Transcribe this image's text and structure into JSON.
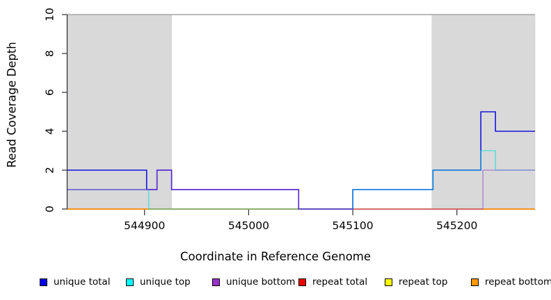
{
  "figure": {
    "xlabel": "Coordinate in Reference Genome",
    "ylabel": "Read Coverage Depth"
  },
  "legend": {
    "items": [
      {
        "label": "unique total",
        "color": "#0000ee"
      },
      {
        "label": "unique top",
        "color": "#00ffff"
      },
      {
        "label": "unique bottom",
        "color": "#9933cc"
      },
      {
        "label": "repeat total",
        "color": "#ee0000"
      },
      {
        "label": "repeat top",
        "color": "#ffff00"
      },
      {
        "label": "repeat bottom",
        "color": "#ff9900"
      }
    ],
    "item_offsets": [
      57,
      181,
      305,
      429,
      553,
      677
    ]
  },
  "chart_data": {
    "type": "line",
    "subtype": "step-coverage-plot",
    "title": "",
    "xlabel": "Coordinate in Reference Genome",
    "ylabel": "Read Coverage Depth",
    "xlim": [
      544826,
      545275
    ],
    "ylim": [
      0,
      10
    ],
    "xticks": [
      544900,
      545000,
      545100,
      545200
    ],
    "yticks": [
      0,
      2,
      4,
      6,
      8,
      10
    ],
    "grid": "single horizontal gray line at depth 10 (max-depth cap)",
    "legend_position": "bottom",
    "background_color": "#ffffff",
    "shaded_region_color": "#d9d9d9",
    "gridline_color": "#a3a3a3",
    "shaded_regions": [
      {
        "x0": 544826,
        "x1": 544926
      },
      {
        "x0": 545176,
        "x1": 545275
      }
    ],
    "series": [
      {
        "name": "repeat top",
        "legend_color": "#ffff00",
        "draw_order": 1,
        "line_color": "#ffff00",
        "opacity": 1,
        "segments": [
          [
            [
              544826,
              0
            ],
            [
              545275,
              0
            ]
          ]
        ]
      },
      {
        "name": "repeat total",
        "legend_color": "#ee0000",
        "draw_order": 2,
        "line_color": "#d84a6e",
        "opacity": 1,
        "segments": [
          [
            [
              544826,
              0
            ],
            [
              545275,
              0
            ]
          ]
        ]
      },
      {
        "name": "repeat bottom",
        "legend_color": "#ff9900",
        "draw_order": 3,
        "line_color": "#ff9500",
        "opacity": 1,
        "segments": [
          [
            [
              544826,
              0
            ],
            [
              545100,
              0
            ]
          ],
          [
            [
              545225,
              0
            ],
            [
              545275,
              0
            ]
          ]
        ]
      },
      {
        "name": "unique total",
        "legend_color": "#0000ee",
        "draw_order": 4,
        "line_color": "#1414dd",
        "opacity": 1,
        "segments": [
          [
            [
              544826,
              2
            ],
            [
              544902,
              2
            ],
            [
              544902,
              1
            ],
            [
              544912,
              1
            ],
            [
              544912,
              2
            ],
            [
              544926,
              2
            ],
            [
              544926,
              1
            ],
            [
              545048,
              1
            ],
            [
              545048,
              0
            ],
            [
              545100,
              0
            ],
            [
              545100,
              1
            ],
            [
              545177,
              1
            ],
            [
              545177,
              2
            ],
            [
              545223,
              2
            ],
            [
              545223,
              5
            ],
            [
              545237,
              5
            ],
            [
              545237,
              4
            ],
            [
              545275,
              4
            ]
          ]
        ]
      },
      {
        "name": "unique top",
        "legend_color": "#00ffff",
        "draw_order": 5,
        "line_color": "#00dddd",
        "opacity": 0.55,
        "segments": [
          [
            [
              544826,
              1
            ],
            [
              544904,
              1
            ],
            [
              544904,
              0
            ],
            [
              545100,
              0
            ],
            [
              545100,
              1
            ],
            [
              545177,
              1
            ],
            [
              545177,
              2
            ],
            [
              545223,
              2
            ],
            [
              545223,
              3
            ],
            [
              545237,
              3
            ],
            [
              545237,
              2
            ],
            [
              545275,
              2
            ]
          ]
        ]
      },
      {
        "name": "unique bottom",
        "legend_color": "#9933cc",
        "draw_order": 6,
        "line_color": "#7030d0",
        "opacity": 0.8,
        "segments": [
          [
            [
              544826,
              1
            ],
            [
              544912,
              1
            ],
            [
              544912,
              2
            ],
            [
              544926,
              2
            ],
            [
              544926,
              1
            ],
            [
              545048,
              1
            ],
            [
              545048,
              0
            ],
            [
              545100,
              0
            ]
          ]
        ]
      },
      {
        "name": "unique bottom (right segment)",
        "legend_color": "#9933cc",
        "draw_order": 7,
        "line_color": "#9b59d0",
        "opacity": 0.6,
        "segments": [
          [
            [
              545225,
              0
            ],
            [
              545225,
              2
            ],
            [
              545275,
              2
            ]
          ]
        ]
      }
    ]
  }
}
